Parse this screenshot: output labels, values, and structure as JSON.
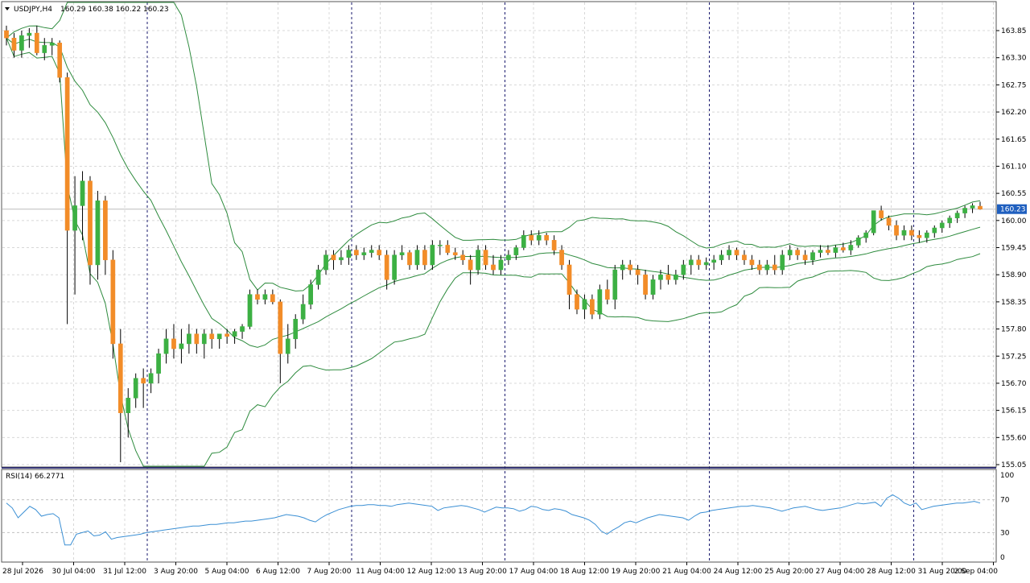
{
  "header": {
    "symbol": "USDJPY,H4",
    "ohlc": "160.29 160.38 160.22 160.23",
    "dropdown_icon": "triangle-down-icon"
  },
  "rsi_header": {
    "label": "RSI(14) 66.2771"
  },
  "colors": {
    "bull": "#3cb043",
    "bear": "#f28c28",
    "wick": "#000000",
    "bands": "#2e8b3e",
    "rsi": "#3a8fd4",
    "grid": "#d8d8d8",
    "separator": "#1a1a6e",
    "price_tag_bg": "#1f5fbf",
    "price_tag_text": "#ffffff"
  },
  "chart_data": [
    {
      "type": "candlestick",
      "title": "USDJPY,H4",
      "ylim": [
        155.05,
        163.85
      ],
      "y_ticks": [
        "163.85",
        "163.30",
        "162.75",
        "162.20",
        "161.65",
        "161.10",
        "160.55",
        "160.00",
        "159.45",
        "158.90",
        "158.35",
        "157.80",
        "157.25",
        "156.70",
        "156.15",
        "155.60",
        "155.05"
      ],
      "current_price_label": "160.23",
      "grid": true,
      "x_labels": [
        "28 Jul 2026",
        "30 Jul 04:00",
        "31 Jul 12:00",
        "3 Aug 20:00",
        "5 Aug 04:00",
        "6 Aug 12:00",
        "7 Aug 20:00",
        "11 Aug 04:00",
        "12 Aug 12:00",
        "13 Aug 20:00",
        "17 Aug 04:00",
        "18 Aug 12:00",
        "19 Aug 20:00",
        "21 Aug 04:00",
        "24 Aug 12:00",
        "25 Aug 20:00",
        "27 Aug 04:00",
        "28 Aug 12:00",
        "31 Aug 20:00",
        "2 Sep 04:00"
      ],
      "period_separators_after_label": [
        "31 Jul 12:00",
        "7 Aug 20:00",
        "13 Aug 20:00",
        "21 Aug 04:00",
        "28 Aug 12:00"
      ],
      "indicator": "Bollinger Bands",
      "candles": [
        {
          "o": 163.85,
          "h": 163.95,
          "l": 163.55,
          "c": 163.7
        },
        {
          "o": 163.7,
          "h": 163.8,
          "l": 163.3,
          "c": 163.45
        },
        {
          "o": 163.45,
          "h": 163.85,
          "l": 163.3,
          "c": 163.75
        },
        {
          "o": 163.75,
          "h": 163.9,
          "l": 163.5,
          "c": 163.8
        },
        {
          "o": 163.8,
          "h": 163.95,
          "l": 163.35,
          "c": 163.4
        },
        {
          "o": 163.4,
          "h": 163.7,
          "l": 163.25,
          "c": 163.55
        },
        {
          "o": 163.55,
          "h": 163.7,
          "l": 163.35,
          "c": 163.6
        },
        {
          "o": 163.6,
          "h": 163.65,
          "l": 162.8,
          "c": 162.9
        },
        {
          "o": 162.9,
          "h": 163.0,
          "l": 157.9,
          "c": 159.8
        },
        {
          "o": 159.8,
          "h": 160.9,
          "l": 158.5,
          "c": 160.3
        },
        {
          "o": 160.3,
          "h": 161.0,
          "l": 159.6,
          "c": 160.8
        },
        {
          "o": 160.8,
          "h": 160.9,
          "l": 158.7,
          "c": 159.1
        },
        {
          "o": 159.1,
          "h": 160.6,
          "l": 158.8,
          "c": 160.4
        },
        {
          "o": 160.4,
          "h": 160.5,
          "l": 158.9,
          "c": 159.2
        },
        {
          "o": 159.2,
          "h": 159.4,
          "l": 157.2,
          "c": 157.5
        },
        {
          "o": 157.5,
          "h": 157.8,
          "l": 155.1,
          "c": 156.1
        },
        {
          "o": 156.1,
          "h": 156.6,
          "l": 155.6,
          "c": 156.4
        },
        {
          "o": 156.4,
          "h": 156.9,
          "l": 156.2,
          "c": 156.8
        },
        {
          "o": 156.8,
          "h": 157.0,
          "l": 156.2,
          "c": 156.7
        },
        {
          "o": 156.7,
          "h": 157.0,
          "l": 156.5,
          "c": 156.9
        },
        {
          "o": 156.9,
          "h": 157.4,
          "l": 156.7,
          "c": 157.3
        },
        {
          "o": 157.3,
          "h": 157.8,
          "l": 157.1,
          "c": 157.6
        },
        {
          "o": 157.6,
          "h": 157.9,
          "l": 157.2,
          "c": 157.4
        },
        {
          "o": 157.4,
          "h": 157.8,
          "l": 157.1,
          "c": 157.5
        },
        {
          "o": 157.5,
          "h": 157.9,
          "l": 157.3,
          "c": 157.7
        },
        {
          "o": 157.7,
          "h": 157.8,
          "l": 157.3,
          "c": 157.5
        },
        {
          "o": 157.5,
          "h": 157.8,
          "l": 157.2,
          "c": 157.7
        },
        {
          "o": 157.7,
          "h": 157.8,
          "l": 157.4,
          "c": 157.6
        },
        {
          "o": 157.6,
          "h": 157.7,
          "l": 157.4,
          "c": 157.7
        },
        {
          "o": 157.7,
          "h": 157.8,
          "l": 157.5,
          "c": 157.65
        },
        {
          "o": 157.65,
          "h": 157.8,
          "l": 157.5,
          "c": 157.75
        },
        {
          "o": 157.75,
          "h": 157.9,
          "l": 157.6,
          "c": 157.85
        },
        {
          "o": 157.85,
          "h": 158.6,
          "l": 157.8,
          "c": 158.5
        },
        {
          "o": 158.5,
          "h": 158.6,
          "l": 158.3,
          "c": 158.4
        },
        {
          "o": 158.4,
          "h": 158.6,
          "l": 158.3,
          "c": 158.5
        },
        {
          "o": 158.5,
          "h": 158.6,
          "l": 158.3,
          "c": 158.35
        },
        {
          "o": 158.35,
          "h": 158.4,
          "l": 156.7,
          "c": 157.3
        },
        {
          "o": 157.3,
          "h": 157.9,
          "l": 157.1,
          "c": 157.6
        },
        {
          "o": 157.6,
          "h": 158.1,
          "l": 157.4,
          "c": 158.0
        },
        {
          "o": 158.0,
          "h": 158.5,
          "l": 157.9,
          "c": 158.3
        },
        {
          "o": 158.3,
          "h": 158.8,
          "l": 158.2,
          "c": 158.7
        },
        {
          "o": 158.7,
          "h": 159.1,
          "l": 158.6,
          "c": 159.0
        },
        {
          "o": 159.0,
          "h": 159.4,
          "l": 158.9,
          "c": 159.3
        },
        {
          "o": 159.3,
          "h": 159.4,
          "l": 159.0,
          "c": 159.2
        },
        {
          "o": 159.2,
          "h": 159.4,
          "l": 159.1,
          "c": 159.25
        },
        {
          "o": 159.25,
          "h": 159.5,
          "l": 159.1,
          "c": 159.4
        },
        {
          "o": 159.4,
          "h": 159.5,
          "l": 159.2,
          "c": 159.3
        },
        {
          "o": 159.3,
          "h": 159.45,
          "l": 159.2,
          "c": 159.35
        },
        {
          "o": 159.35,
          "h": 159.5,
          "l": 159.25,
          "c": 159.4
        },
        {
          "o": 159.4,
          "h": 159.5,
          "l": 159.2,
          "c": 159.3
        },
        {
          "o": 159.3,
          "h": 159.4,
          "l": 158.6,
          "c": 158.8
        },
        {
          "o": 158.8,
          "h": 159.4,
          "l": 158.7,
          "c": 159.3
        },
        {
          "o": 159.3,
          "h": 159.5,
          "l": 159.2,
          "c": 159.35
        },
        {
          "o": 159.35,
          "h": 159.4,
          "l": 159.0,
          "c": 159.1
        },
        {
          "o": 159.1,
          "h": 159.5,
          "l": 159.0,
          "c": 159.4
        },
        {
          "o": 159.4,
          "h": 159.5,
          "l": 159.0,
          "c": 159.1
        },
        {
          "o": 159.1,
          "h": 159.6,
          "l": 159.0,
          "c": 159.5
        },
        {
          "o": 159.5,
          "h": 159.6,
          "l": 159.3,
          "c": 159.5
        },
        {
          "o": 159.5,
          "h": 159.6,
          "l": 159.3,
          "c": 159.35
        },
        {
          "o": 159.35,
          "h": 159.45,
          "l": 159.2,
          "c": 159.3
        },
        {
          "o": 159.3,
          "h": 159.4,
          "l": 159.1,
          "c": 159.2
        },
        {
          "o": 159.2,
          "h": 159.3,
          "l": 158.7,
          "c": 159.0
        },
        {
          "o": 159.0,
          "h": 159.5,
          "l": 158.9,
          "c": 159.4
        },
        {
          "o": 159.4,
          "h": 159.5,
          "l": 159.0,
          "c": 159.1
        },
        {
          "o": 159.1,
          "h": 159.3,
          "l": 158.9,
          "c": 159.0
        },
        {
          "o": 159.0,
          "h": 159.3,
          "l": 158.9,
          "c": 159.2
        },
        {
          "o": 159.2,
          "h": 159.4,
          "l": 159.1,
          "c": 159.3
        },
        {
          "o": 159.3,
          "h": 159.5,
          "l": 159.2,
          "c": 159.45
        },
        {
          "o": 159.45,
          "h": 159.8,
          "l": 159.4,
          "c": 159.7
        },
        {
          "o": 159.7,
          "h": 159.8,
          "l": 159.5,
          "c": 159.6
        },
        {
          "o": 159.6,
          "h": 159.8,
          "l": 159.5,
          "c": 159.7
        },
        {
          "o": 159.7,
          "h": 159.75,
          "l": 159.5,
          "c": 159.6
        },
        {
          "o": 159.6,
          "h": 159.7,
          "l": 159.3,
          "c": 159.4
        },
        {
          "o": 159.4,
          "h": 159.5,
          "l": 159.0,
          "c": 159.1
        },
        {
          "o": 159.1,
          "h": 159.2,
          "l": 158.2,
          "c": 158.5
        },
        {
          "o": 158.5,
          "h": 158.6,
          "l": 158.1,
          "c": 158.2
        },
        {
          "o": 158.2,
          "h": 158.5,
          "l": 158.0,
          "c": 158.4
        },
        {
          "o": 158.4,
          "h": 158.5,
          "l": 158.0,
          "c": 158.1
        },
        {
          "o": 158.1,
          "h": 158.7,
          "l": 158.0,
          "c": 158.6
        },
        {
          "o": 158.6,
          "h": 158.8,
          "l": 158.3,
          "c": 158.4
        },
        {
          "o": 158.4,
          "h": 159.1,
          "l": 158.2,
          "c": 159.0
        },
        {
          "o": 159.0,
          "h": 159.2,
          "l": 158.8,
          "c": 159.1
        },
        {
          "o": 159.1,
          "h": 159.2,
          "l": 158.9,
          "c": 159.0
        },
        {
          "o": 159.0,
          "h": 159.1,
          "l": 158.7,
          "c": 158.9
        },
        {
          "o": 158.9,
          "h": 159.0,
          "l": 158.4,
          "c": 158.5
        },
        {
          "o": 158.5,
          "h": 158.9,
          "l": 158.4,
          "c": 158.8
        },
        {
          "o": 158.8,
          "h": 159.0,
          "l": 158.6,
          "c": 158.9
        },
        {
          "o": 158.9,
          "h": 159.1,
          "l": 158.7,
          "c": 158.8
        },
        {
          "o": 158.8,
          "h": 159.0,
          "l": 158.7,
          "c": 158.9
        },
        {
          "o": 158.9,
          "h": 159.2,
          "l": 158.8,
          "c": 159.1
        },
        {
          "o": 159.1,
          "h": 159.3,
          "l": 158.9,
          "c": 159.2
        },
        {
          "o": 159.2,
          "h": 159.3,
          "l": 159.0,
          "c": 159.1
        },
        {
          "o": 159.1,
          "h": 159.25,
          "l": 159.0,
          "c": 159.15
        },
        {
          "o": 159.15,
          "h": 159.3,
          "l": 159.0,
          "c": 159.2
        },
        {
          "o": 159.2,
          "h": 159.4,
          "l": 159.1,
          "c": 159.3
        },
        {
          "o": 159.3,
          "h": 159.5,
          "l": 159.2,
          "c": 159.4
        },
        {
          "o": 159.4,
          "h": 159.45,
          "l": 159.2,
          "c": 159.3
        },
        {
          "o": 159.3,
          "h": 159.4,
          "l": 159.1,
          "c": 159.2
        },
        {
          "o": 159.2,
          "h": 159.3,
          "l": 159.0,
          "c": 159.1
        },
        {
          "o": 159.1,
          "h": 159.2,
          "l": 158.9,
          "c": 159.0
        },
        {
          "o": 159.0,
          "h": 159.2,
          "l": 158.9,
          "c": 159.1
        },
        {
          "o": 159.1,
          "h": 159.3,
          "l": 158.9,
          "c": 159.0
        },
        {
          "o": 159.0,
          "h": 159.4,
          "l": 158.9,
          "c": 159.3
        },
        {
          "o": 159.3,
          "h": 159.5,
          "l": 159.2,
          "c": 159.4
        },
        {
          "o": 159.4,
          "h": 159.45,
          "l": 159.2,
          "c": 159.3
        },
        {
          "o": 159.3,
          "h": 159.4,
          "l": 159.1,
          "c": 159.2
        },
        {
          "o": 159.2,
          "h": 159.4,
          "l": 159.1,
          "c": 159.35
        },
        {
          "o": 159.35,
          "h": 159.5,
          "l": 159.25,
          "c": 159.4
        },
        {
          "o": 159.4,
          "h": 159.5,
          "l": 159.3,
          "c": 159.35
        },
        {
          "o": 159.35,
          "h": 159.5,
          "l": 159.25,
          "c": 159.45
        },
        {
          "o": 159.45,
          "h": 159.55,
          "l": 159.35,
          "c": 159.4
        },
        {
          "o": 159.4,
          "h": 159.6,
          "l": 159.3,
          "c": 159.5
        },
        {
          "o": 159.5,
          "h": 159.7,
          "l": 159.45,
          "c": 159.65
        },
        {
          "o": 159.65,
          "h": 159.8,
          "l": 159.55,
          "c": 159.75
        },
        {
          "o": 159.75,
          "h": 160.2,
          "l": 159.7,
          "c": 160.2
        },
        {
          "o": 160.2,
          "h": 160.3,
          "l": 160.0,
          "c": 160.05
        },
        {
          "o": 160.05,
          "h": 160.1,
          "l": 159.8,
          "c": 159.9
        },
        {
          "o": 159.9,
          "h": 160.0,
          "l": 159.6,
          "c": 159.7
        },
        {
          "o": 159.7,
          "h": 159.9,
          "l": 159.6,
          "c": 159.8
        },
        {
          "o": 159.8,
          "h": 159.9,
          "l": 159.6,
          "c": 159.7
        },
        {
          "o": 159.7,
          "h": 159.8,
          "l": 159.55,
          "c": 159.65
        },
        {
          "o": 159.65,
          "h": 159.8,
          "l": 159.55,
          "c": 159.75
        },
        {
          "o": 159.75,
          "h": 159.9,
          "l": 159.65,
          "c": 159.85
        },
        {
          "o": 159.85,
          "h": 160.0,
          "l": 159.75,
          "c": 159.95
        },
        {
          "o": 159.95,
          "h": 160.1,
          "l": 159.85,
          "c": 160.05
        },
        {
          "o": 160.05,
          "h": 160.2,
          "l": 159.95,
          "c": 160.15
        },
        {
          "o": 160.15,
          "h": 160.3,
          "l": 160.05,
          "c": 160.25
        },
        {
          "o": 160.25,
          "h": 160.35,
          "l": 160.15,
          "c": 160.3
        },
        {
          "o": 160.29,
          "h": 160.38,
          "l": 160.22,
          "c": 160.23
        }
      ]
    },
    {
      "type": "line",
      "title": "RSI(14) 66.2771",
      "ylim": [
        0,
        100
      ],
      "y_ticks": [
        "100",
        "70",
        "30",
        "0"
      ],
      "series": [
        {
          "name": "RSI(14)",
          "values": [
            66,
            60,
            48,
            55,
            62,
            58,
            50,
            52,
            53,
            48,
            15,
            15,
            28,
            30,
            32,
            26,
            27,
            31,
            22,
            24,
            25,
            26,
            27,
            28,
            30,
            31,
            32,
            33,
            34,
            35,
            36,
            37,
            38,
            38,
            39,
            40,
            40,
            41,
            42,
            42,
            43,
            44,
            44,
            45,
            46,
            47,
            48,
            50,
            52,
            51,
            50,
            48,
            45,
            43,
            48,
            52,
            55,
            58,
            60,
            62,
            63,
            63,
            64,
            64,
            63,
            63,
            62,
            64,
            65,
            66,
            65,
            64,
            63,
            62,
            57,
            60,
            61,
            62,
            63,
            62,
            60,
            58,
            55,
            58,
            61,
            60,
            60,
            59,
            56,
            58,
            62,
            61,
            58,
            57,
            59,
            58,
            56,
            52,
            50,
            48,
            45,
            40,
            32,
            28,
            33,
            37,
            42,
            44,
            42,
            45,
            48,
            50,
            52,
            51,
            50,
            49,
            48,
            45,
            50,
            54,
            55,
            57,
            58,
            59,
            60,
            61,
            62,
            62,
            63,
            62,
            61,
            60,
            58,
            56,
            58,
            60,
            61,
            62,
            60,
            58,
            57,
            58,
            59,
            60,
            62,
            64,
            66,
            65,
            66,
            67,
            62,
            72,
            76,
            72,
            66,
            63,
            66,
            58,
            60,
            62,
            63,
            64,
            65,
            66,
            66,
            67,
            68,
            66
          ]
        }
      ]
    }
  ]
}
